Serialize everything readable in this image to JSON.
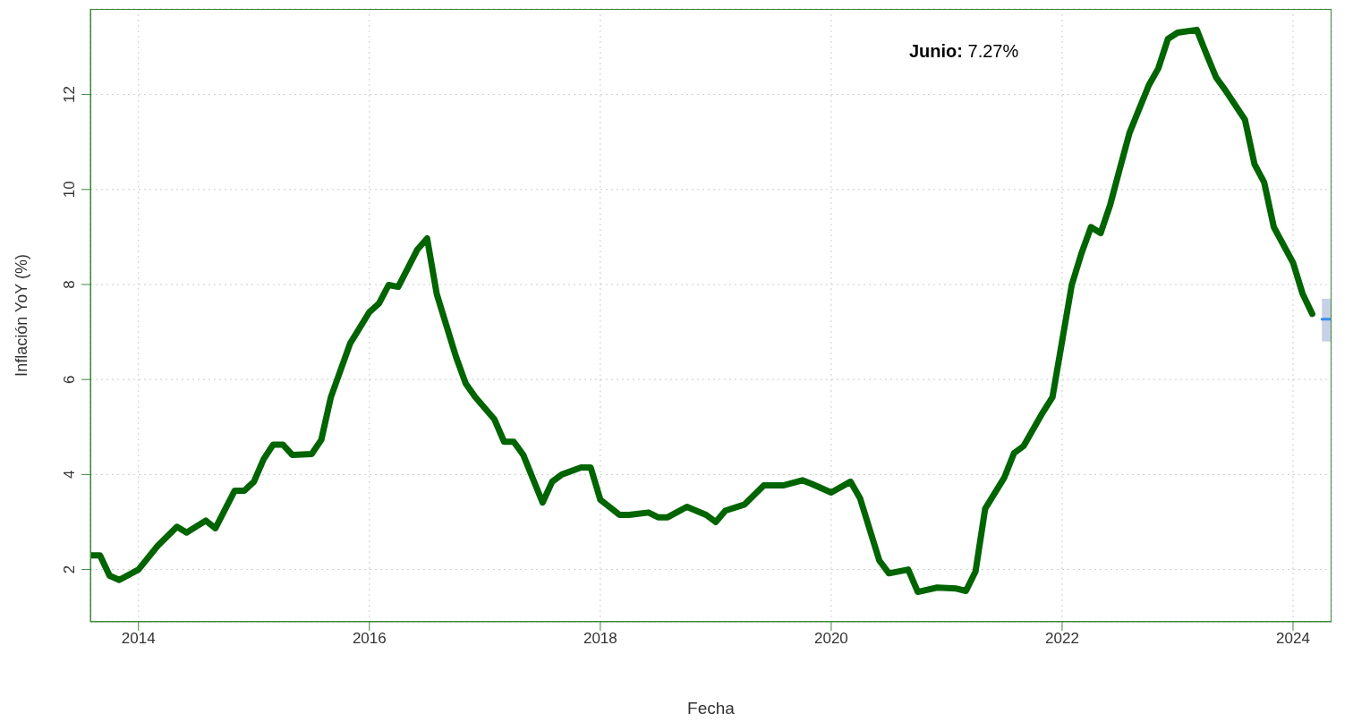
{
  "chart_data": {
    "type": "line",
    "xlabel": "Fecha",
    "ylabel": "Inflación YoY (%)",
    "annotations": [
      "Junio: 7.27%"
    ],
    "xlim": [
      "2013-08",
      "2024-05"
    ],
    "xticks": [
      "2014",
      "2016",
      "2018",
      "2020",
      "2022",
      "2024"
    ],
    "ylim": [
      0.9,
      13.8
    ],
    "yticks": [
      2,
      4,
      6,
      8,
      10,
      12
    ],
    "grid": true,
    "line_style": "solid",
    "marker": "none",
    "series": [
      {
        "color": "#006400",
        "x": [
          "2013-08",
          "2013-09",
          "2013-10",
          "2013-11",
          "2014-01",
          "2014-03",
          "2014-05",
          "2014-06",
          "2014-08",
          "2014-09",
          "2014-11",
          "2014-12",
          "2015-01",
          "2015-02",
          "2015-03",
          "2015-04",
          "2015-05",
          "2015-07",
          "2015-08",
          "2015-09",
          "2015-11",
          "2016-01",
          "2016-02",
          "2016-03",
          "2016-04",
          "2016-06",
          "2016-07",
          "2016-08",
          "2016-10",
          "2016-11",
          "2016-12",
          "2017-02",
          "2017-03",
          "2017-04",
          "2017-05",
          "2017-07",
          "2017-08",
          "2017-09",
          "2017-11",
          "2017-12",
          "2018-01",
          "2018-03",
          "2018-04",
          "2018-06",
          "2018-07",
          "2018-08",
          "2018-10",
          "2018-12",
          "2019-01",
          "2019-02",
          "2019-04",
          "2019-06",
          "2019-08",
          "2019-10",
          "2019-11",
          "2020-01",
          "2020-03",
          "2020-04",
          "2020-06",
          "2020-07",
          "2020-09",
          "2020-10",
          "2020-12",
          "2021-02",
          "2021-03",
          "2021-04",
          "2021-05",
          "2021-07",
          "2021-08",
          "2021-09",
          "2021-11",
          "2021-12",
          "2022-02",
          "2022-03",
          "2022-04",
          "2022-05",
          "2022-06",
          "2022-07",
          "2022-08",
          "2022-10",
          "2022-11",
          "2022-12",
          "2023-01",
          "2023-03",
          "2023-04",
          "2023-05",
          "2023-06",
          "2023-08",
          "2023-09",
          "2023-10",
          "2023-11",
          "2024-01",
          "2024-02",
          "2024-03"
        ],
        "values": [
          2.3,
          2.3,
          1.87,
          1.78,
          2.0,
          2.5,
          2.9,
          2.78,
          3.03,
          2.87,
          3.66,
          3.66,
          3.85,
          4.32,
          4.63,
          4.63,
          4.41,
          4.43,
          4.73,
          5.63,
          6.76,
          7.42,
          7.6,
          7.99,
          7.95,
          8.74,
          8.97,
          7.8,
          6.48,
          5.92,
          5.63,
          5.16,
          4.69,
          4.69,
          4.41,
          3.41,
          3.85,
          4.0,
          4.15,
          4.15,
          3.47,
          3.15,
          3.15,
          3.2,
          3.1,
          3.1,
          3.32,
          3.15,
          3.0,
          3.24,
          3.37,
          3.77,
          3.77,
          3.88,
          3.8,
          3.62,
          3.85,
          3.5,
          2.19,
          1.92,
          2.0,
          1.53,
          1.62,
          1.6,
          1.55,
          1.96,
          3.28,
          3.94,
          4.45,
          4.6,
          5.31,
          5.63,
          7.99,
          8.65,
          9.21,
          9.08,
          9.68,
          10.44,
          11.19,
          12.19,
          12.55,
          13.17,
          13.3,
          13.36,
          12.85,
          12.36,
          12.08,
          11.47,
          10.53,
          10.15,
          9.21,
          8.46,
          7.8,
          7.38
        ]
      },
      {
        "color": "#3a8ee6",
        "x": [
          "2024-04",
          "2024-05"
        ],
        "values": [
          7.27,
          7.27
        ],
        "lower": [
          6.8,
          6.8
        ],
        "upper": [
          7.7,
          7.7
        ]
      }
    ]
  }
}
